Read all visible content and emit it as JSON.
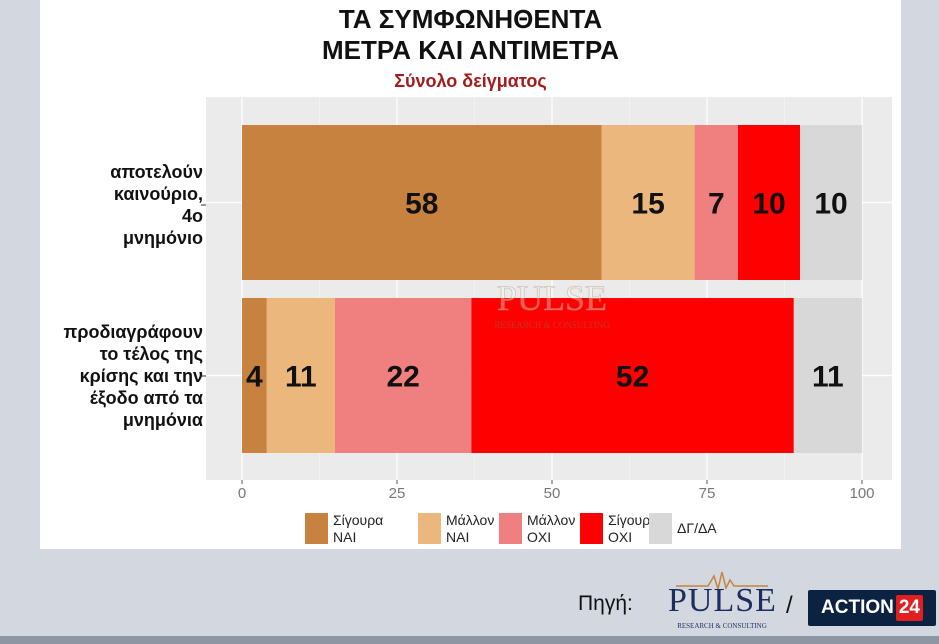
{
  "title": {
    "line1": "ΤΑ ΣΥΜΦΩΝΗΘΕΝΤΑ",
    "line2": "ΜΕΤΡΑ ΚΑΙ ΑΝΤΙΜΕΤΡΑ",
    "subtitle": "Σύνολο δείγματος"
  },
  "watermark": {
    "main": "PULSE",
    "sub": "RESEARCH & CONSULTING"
  },
  "source": {
    "label": "Πηγή:",
    "pulse": "PULSE",
    "pulse_sub": "RESEARCH & CONSULTING",
    "separator": "/",
    "action": "ACTION",
    "action_num": "24"
  },
  "chart_data": {
    "type": "bar",
    "orientation": "horizontal",
    "stacked": true,
    "title": "ΤΑ ΣΥΜΦΩΝΗΘΕΝΤΑ ΜΕΤΡΑ ΚΑΙ ΑΝΤΙΜΕΤΡΑ",
    "subtitle": "Σύνολο δείγματος",
    "categories": [
      [
        "αποτελούν",
        "καινούριο,",
        "4ο",
        "μνημόνιο"
      ],
      [
        "προδιαγράφουν",
        "το τέλος της",
        "κρίσης και την",
        "έξοδο από τα",
        "μνημόνια"
      ]
    ],
    "series": [
      {
        "name": [
          "Σίγουρα",
          "ΝΑΙ"
        ],
        "color": "#c8823f",
        "values": [
          58,
          4
        ]
      },
      {
        "name": [
          "Μάλλον",
          "ΝΑΙ"
        ],
        "color": "#ebb77c",
        "values": [
          15,
          11
        ]
      },
      {
        "name": [
          "Μάλλον",
          "ΟΧΙ"
        ],
        "color": "#f08080",
        "values": [
          7,
          22
        ]
      },
      {
        "name": [
          "Σίγουρα",
          "ΟΧΙ"
        ],
        "color": "#fe0000",
        "values": [
          10,
          52
        ]
      },
      {
        "name": [
          "ΔΓ/ΔΑ"
        ],
        "color": "#d8d8d8",
        "values": [
          10,
          11
        ]
      }
    ],
    "xlim": [
      0,
      100
    ],
    "xticks": [
      0,
      25,
      50,
      75,
      100
    ],
    "grid": true,
    "legend": "bottom",
    "panel_bg": "#ebebeb"
  }
}
